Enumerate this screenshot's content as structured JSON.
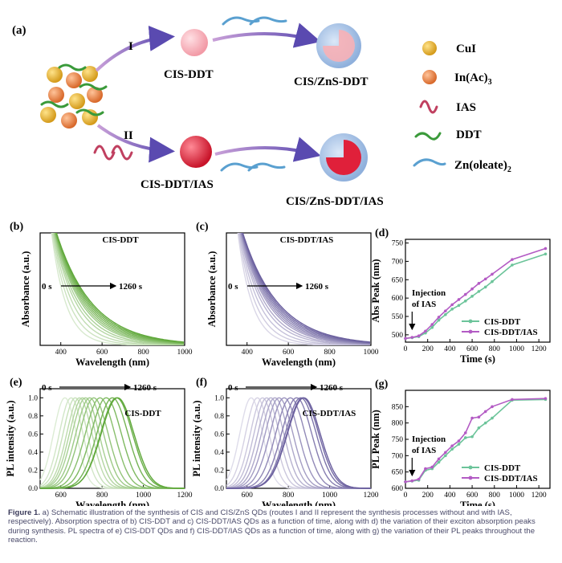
{
  "schematic": {
    "panel_label": "(a)",
    "route1": "I",
    "route2": "II",
    "cis_ddt": "CIS-DDT",
    "cis_zns_ddt": "CIS/ZnS-DDT",
    "cis_ddt_ias": "CIS-DDT/IAS",
    "cis_zns_ddt_ias": "CIS/ZnS-DDT/IAS",
    "legend": [
      {
        "name": "CuI",
        "color": "#e8b53a",
        "icon": "gold-sphere"
      },
      {
        "name": "In(Ac)",
        "sub": "3",
        "color": "#e8874a",
        "icon": "orange-sphere"
      },
      {
        "name": "IAS",
        "color": "#c04060",
        "icon": "pink-wave"
      },
      {
        "name": "DDT",
        "color": "#3a9a3a",
        "icon": "green-chain"
      },
      {
        "name": "Zn(oleate)",
        "sub": "2",
        "color": "#5aa0d0",
        "icon": "blue-chain"
      }
    ]
  },
  "chart_data": [
    {
      "id": "b",
      "panel_label": "(b)",
      "type": "line",
      "title": "CIS-DDT",
      "xlabel": "Wavelength (nm)",
      "ylabel": "Absorbance (a.u.)",
      "xlim": [
        300,
        1000
      ],
      "xticks": [
        400,
        600,
        800,
        1000
      ],
      "arrow_start": "0 s",
      "arrow_end": "1260 s",
      "color": "#5fa83a",
      "series_edges_nm": [
        500,
        540,
        580,
        620,
        650,
        680,
        700,
        720,
        740,
        760,
        780,
        800
      ],
      "note": "absorption curves, absorption edge red-shifting with time"
    },
    {
      "id": "c",
      "panel_label": "(c)",
      "type": "line",
      "title": "CIS-DDT/IAS",
      "xlabel": "Wavelength (nm)",
      "ylabel": "Absorbance (a.u.)",
      "xlim": [
        300,
        1000
      ],
      "xticks": [
        400,
        600,
        800,
        1000
      ],
      "arrow_start": "0 s",
      "arrow_end": "1260 s",
      "color": "#6a5f9e",
      "series_edges_nm": [
        500,
        540,
        580,
        620,
        650,
        680,
        700,
        720,
        740,
        760,
        780,
        800
      ]
    },
    {
      "id": "d",
      "panel_label": "(d)",
      "type": "line",
      "xlabel": "Time (s)",
      "ylabel": "Abs Peak (nm)",
      "xlim": [
        0,
        1300
      ],
      "ylim": [
        480,
        760
      ],
      "xticks": [
        0,
        200,
        400,
        600,
        800,
        1000,
        1200
      ],
      "yticks": [
        500,
        550,
        600,
        650,
        700,
        750
      ],
      "annotation_line1": "Injection",
      "annotation_line2": "of  IAS",
      "series": [
        {
          "name": "CIS-DDT",
          "color": "#6cc49a",
          "x": [
            0,
            60,
            120,
            180,
            240,
            300,
            360,
            420,
            480,
            540,
            600,
            660,
            720,
            780,
            960,
            1260
          ],
          "y": [
            490,
            492,
            495,
            505,
            520,
            540,
            555,
            570,
            580,
            592,
            605,
            618,
            630,
            645,
            690,
            720
          ]
        },
        {
          "name": "CIS-DDT/IAS",
          "color": "#b35bc4",
          "x": [
            0,
            60,
            120,
            180,
            240,
            300,
            360,
            420,
            480,
            540,
            600,
            660,
            720,
            780,
            960,
            1260
          ],
          "y": [
            490,
            493,
            497,
            510,
            528,
            548,
            565,
            582,
            596,
            610,
            625,
            640,
            652,
            665,
            705,
            735
          ]
        }
      ]
    },
    {
      "id": "e",
      "panel_label": "(e)",
      "type": "line",
      "title": "CIS-DDT",
      "xlabel": "Wavelength (nm)",
      "ylabel": "PL intensity (a.u.)",
      "xlim": [
        500,
        1200
      ],
      "ylim": [
        0,
        1.1
      ],
      "xticks": [
        600,
        800,
        1000,
        1200
      ],
      "yticks": [
        0.0,
        0.2,
        0.4,
        0.6,
        0.8,
        1.0
      ],
      "arrow_start": "0 s",
      "arrow_end": "1260 s",
      "color": "#5fa83a",
      "peaks_nm": [
        620,
        650,
        670,
        690,
        705,
        720,
        740,
        760,
        790,
        820,
        850,
        870,
        875
      ]
    },
    {
      "id": "f",
      "panel_label": "(f)",
      "type": "line",
      "title": "CIS-DDT/IAS",
      "xlabel": "Wavelength (nm)",
      "ylabel": "PL intensity (a.u.)",
      "xlim": [
        500,
        1200
      ],
      "ylim": [
        0,
        1.1
      ],
      "xticks": [
        600,
        800,
        1000,
        1200
      ],
      "yticks": [
        0.0,
        0.2,
        0.4,
        0.6,
        0.8,
        1.0
      ],
      "arrow_start": "0 s",
      "arrow_end": "1260 s",
      "color": "#6a5f9e",
      "peaks_nm": [
        620,
        650,
        675,
        695,
        715,
        735,
        755,
        780,
        810,
        840,
        860,
        870,
        875
      ]
    },
    {
      "id": "g",
      "panel_label": "(g)",
      "type": "line",
      "xlabel": "Time (s)",
      "ylabel": "PL Peak (nm)",
      "xlim": [
        0,
        1300
      ],
      "ylim": [
        600,
        900
      ],
      "xticks": [
        0,
        200,
        400,
        600,
        800,
        1000,
        1200
      ],
      "yticks": [
        600,
        650,
        700,
        750,
        800,
        850
      ],
      "annotation_line1": "Injection",
      "annotation_line2": "of IAS",
      "series": [
        {
          "name": "CIS-DDT",
          "color": "#6cc49a",
          "x": [
            0,
            60,
            120,
            180,
            240,
            300,
            360,
            420,
            480,
            540,
            600,
            660,
            720,
            780,
            960,
            1260
          ],
          "y": [
            620,
            622,
            625,
            655,
            660,
            680,
            700,
            720,
            735,
            755,
            758,
            785,
            800,
            815,
            870,
            872
          ]
        },
        {
          "name": "CIS-DDT/IAS",
          "color": "#b35bc4",
          "x": [
            0,
            60,
            120,
            180,
            240,
            300,
            360,
            420,
            480,
            540,
            600,
            660,
            720,
            780,
            960,
            1260
          ],
          "y": [
            620,
            623,
            628,
            660,
            665,
            690,
            710,
            730,
            745,
            770,
            815,
            818,
            835,
            850,
            872,
            875
          ]
        }
      ]
    }
  ],
  "caption": {
    "label": "Figure 1.",
    "text": "a) Schematic illustration of the synthesis of CIS and CIS/ZnS QDs (routes I and II represent the synthesis processes without and with IAS, respectively). Absorption spectra of b) CIS-DDT and c) CIS-DDT/IAS QDs as a function of time, along with d) the variation of their exciton absorption peaks during synthesis. PL spectra of e) CIS-DDT QDs and f) CIS-DDT/IAS QDs as a function of time, along with g) the variation of their PL peaks throughout the reaction."
  }
}
